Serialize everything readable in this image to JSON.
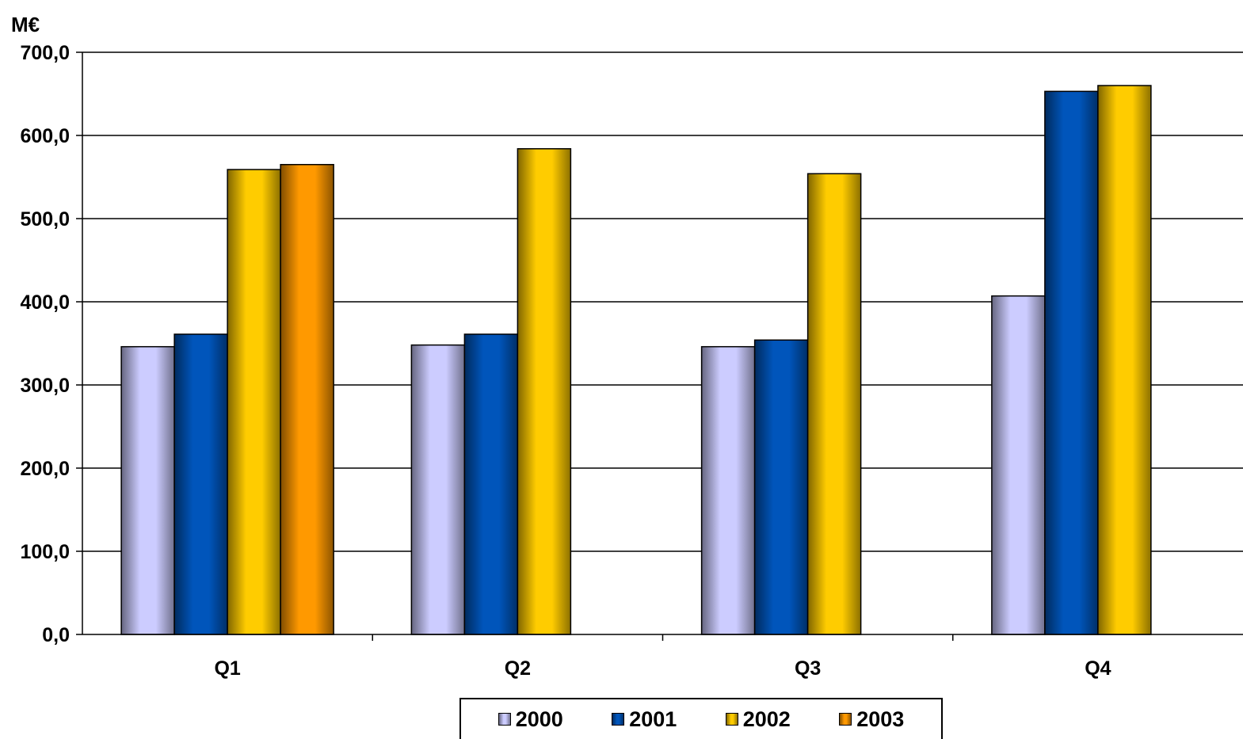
{
  "chart_data": {
    "type": "bar",
    "ylabel": "M€",
    "xlabel": "",
    "title": "",
    "ylim": [
      0,
      700
    ],
    "ytick_labels": [
      "0,0",
      "100,0",
      "200,0",
      "300,0",
      "400,0",
      "500,0",
      "600,0",
      "700,0"
    ],
    "categories": [
      "Q1",
      "Q2",
      "Q3",
      "Q4"
    ],
    "series": [
      {
        "name": "2000",
        "values": [
          346,
          348,
          346,
          407
        ],
        "color": "#CCCCFF"
      },
      {
        "name": "2001",
        "values": [
          361,
          361,
          354,
          653
        ],
        "color": "#0055BB"
      },
      {
        "name": "2002",
        "values": [
          559,
          584,
          554,
          660
        ],
        "color": "#FFCC00"
      },
      {
        "name": "2003",
        "values": [
          565,
          null,
          null,
          null
        ],
        "color": "#FF9900"
      }
    ],
    "grid": true,
    "legend_position": "bottom"
  }
}
